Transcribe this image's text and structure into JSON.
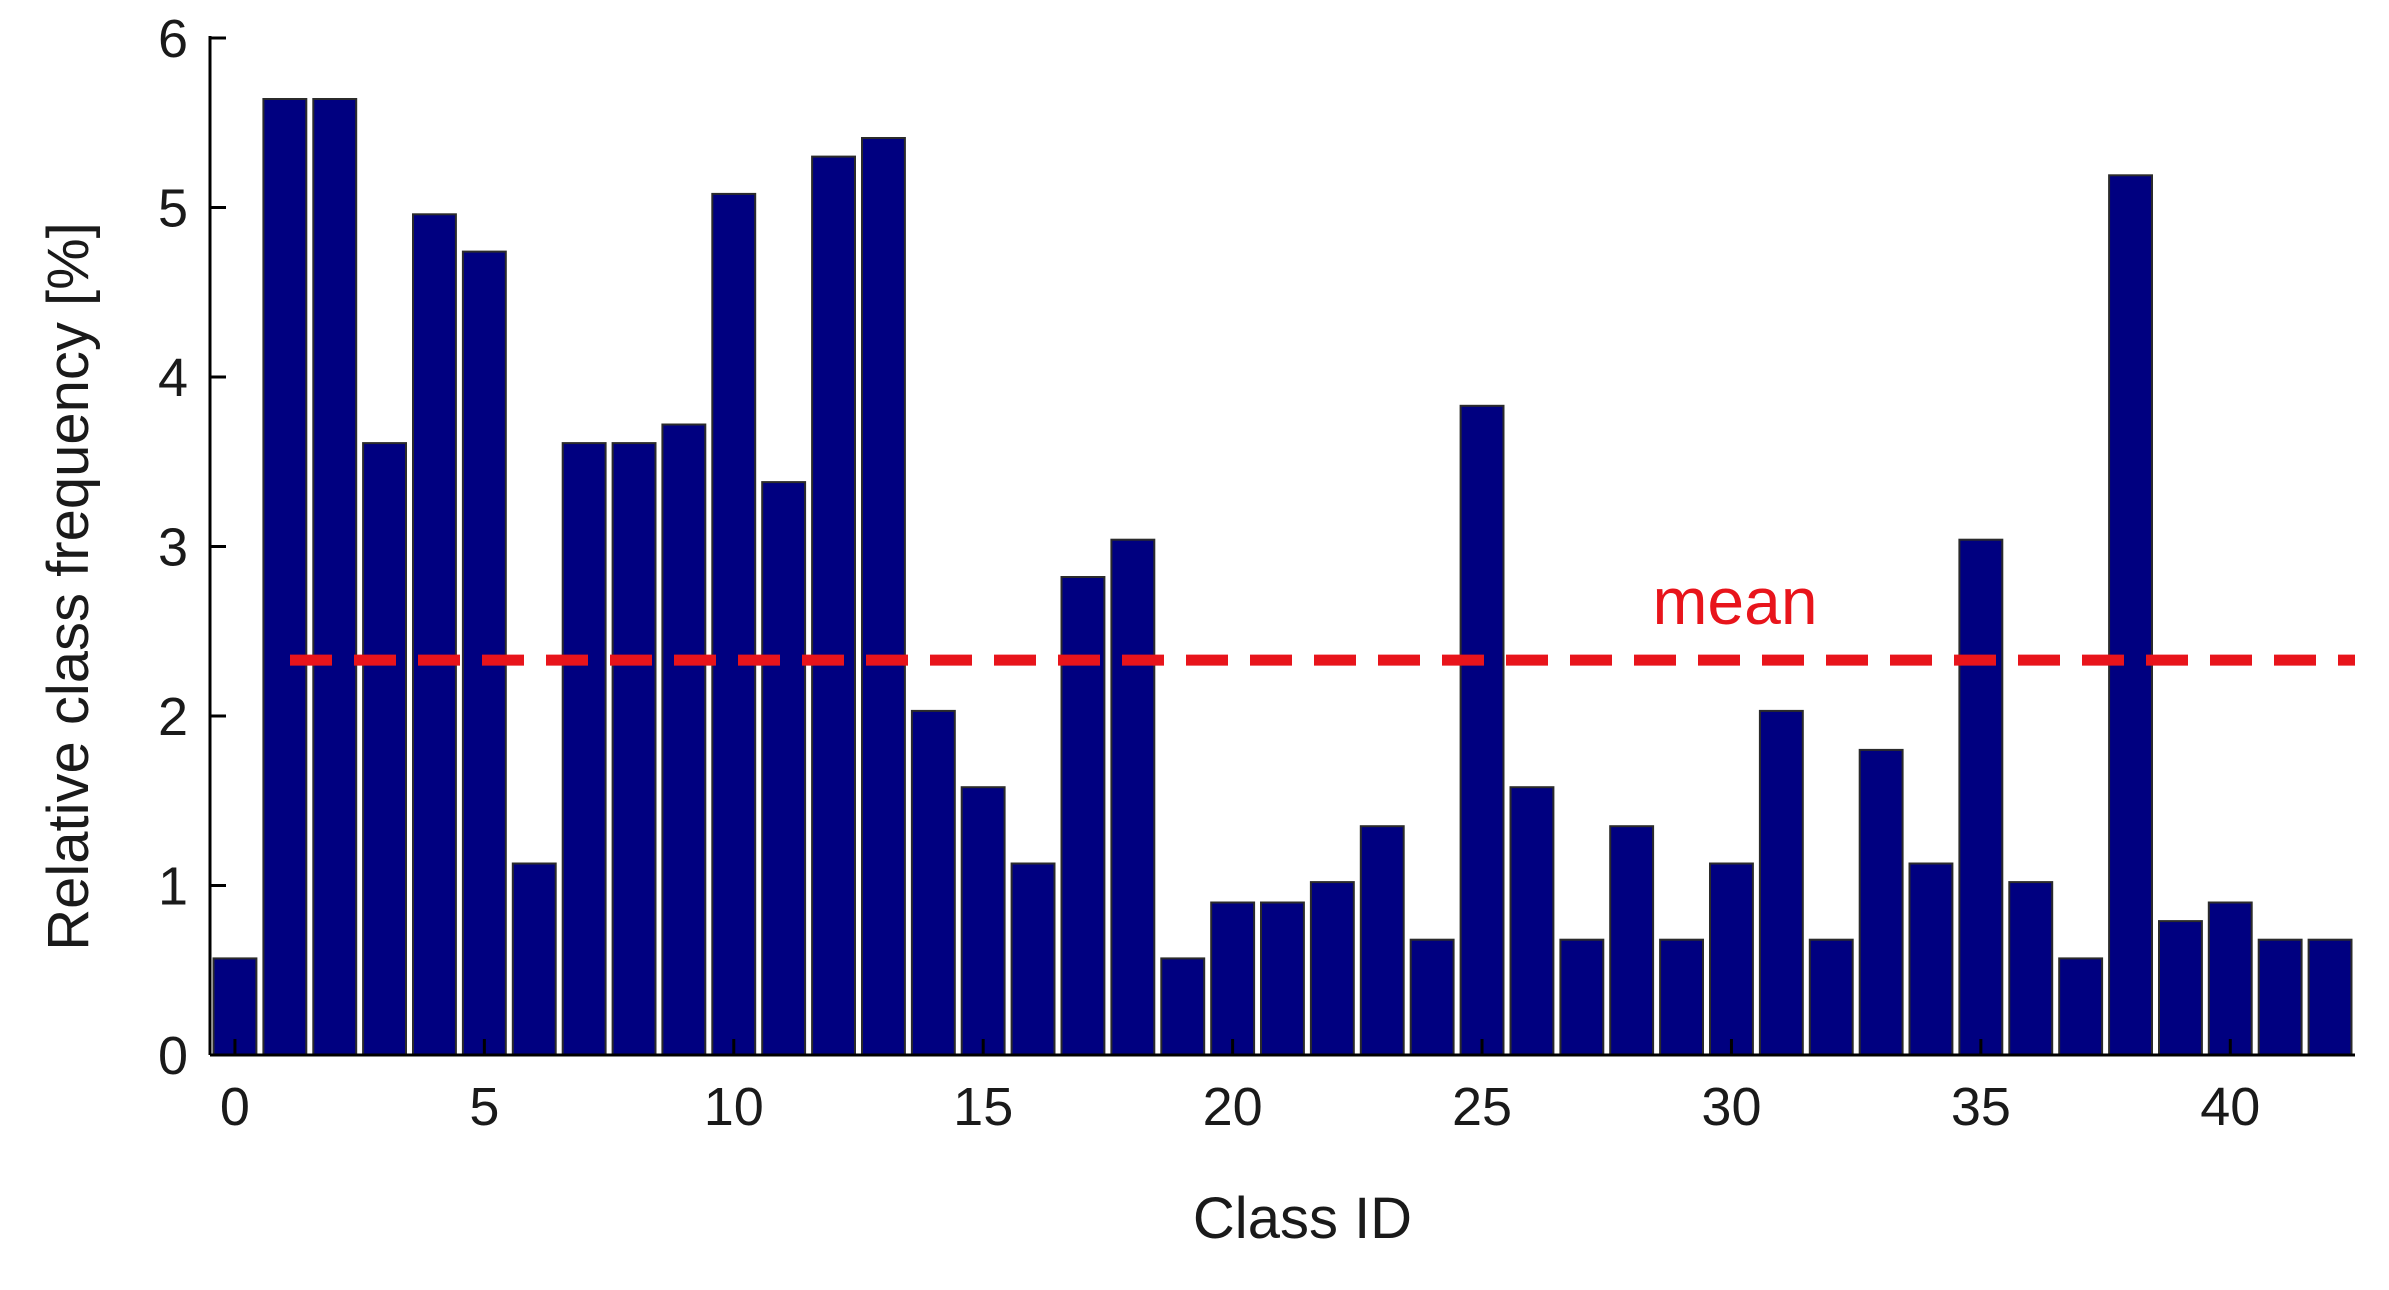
{
  "chart_data": {
    "type": "bar",
    "title": "",
    "xlabel": "Class ID",
    "ylabel": "Relative class frequency [%]",
    "xlim": [
      -0.5,
      42.5
    ],
    "ylim": [
      0,
      6
    ],
    "x_ticks": [
      0,
      5,
      10,
      15,
      20,
      25,
      30,
      35,
      40
    ],
    "y_ticks": [
      0,
      1,
      2,
      3,
      4,
      5,
      6
    ],
    "grid": false,
    "categories": [
      0,
      1,
      2,
      3,
      4,
      5,
      6,
      7,
      8,
      9,
      10,
      11,
      12,
      13,
      14,
      15,
      16,
      17,
      18,
      19,
      20,
      21,
      22,
      23,
      24,
      25,
      26,
      27,
      28,
      29,
      30,
      31,
      32,
      33,
      34,
      35,
      36,
      37,
      38,
      39,
      40,
      41,
      42
    ],
    "values": [
      0.57,
      5.64,
      5.64,
      3.61,
      4.96,
      4.74,
      1.13,
      3.61,
      3.61,
      3.72,
      5.08,
      3.38,
      5.3,
      5.41,
      2.03,
      1.58,
      1.13,
      2.82,
      3.04,
      0.57,
      0.9,
      0.9,
      1.02,
      1.35,
      0.68,
      3.83,
      1.58,
      0.68,
      1.35,
      0.68,
      1.13,
      2.03,
      0.68,
      1.8,
      1.13,
      3.04,
      1.02,
      0.57,
      5.19,
      0.79,
      0.9,
      0.68,
      0.68
    ],
    "bar_color": "#000080",
    "mean": {
      "label": "mean",
      "value": 2.33,
      "color": "#e8141b"
    }
  }
}
